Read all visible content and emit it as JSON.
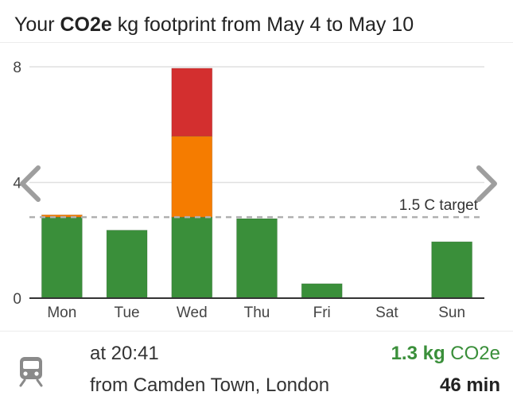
{
  "header": {
    "title_prefix": "Your",
    "title_bold": "CO2e",
    "title_suffix": "kg footprint from May 4 to May 10"
  },
  "nav": {
    "prev_icon": "chevron-left-icon",
    "next_icon": "chevron-right-icon"
  },
  "chart_data": {
    "type": "bar",
    "stacked": true,
    "categories": [
      "Mon",
      "Tue",
      "Wed",
      "Thu",
      "Fri",
      "Sat",
      "Sun"
    ],
    "series": [
      {
        "color": "#3a8f3a",
        "values": [
          2.8,
          2.35,
          2.8,
          2.75,
          0.5,
          0,
          1.95
        ]
      },
      {
        "color": "#f57c00",
        "values": [
          0.08,
          0,
          2.8,
          0,
          0,
          0,
          0
        ]
      },
      {
        "color": "#d32f2f",
        "values": [
          0,
          0,
          2.35,
          0,
          0,
          0,
          0
        ]
      }
    ],
    "yticks": [
      0,
      4,
      8
    ],
    "ylim": [
      0,
      8
    ],
    "grid": true,
    "target": {
      "label": "1.5 C target",
      "value": 2.8
    }
  },
  "trip": {
    "icon": "train-icon",
    "time": "at 20:41",
    "from": "from Camden Town, London",
    "co2_value": "1.3 kg",
    "co2_unit": "CO2e",
    "duration": "46 min"
  }
}
